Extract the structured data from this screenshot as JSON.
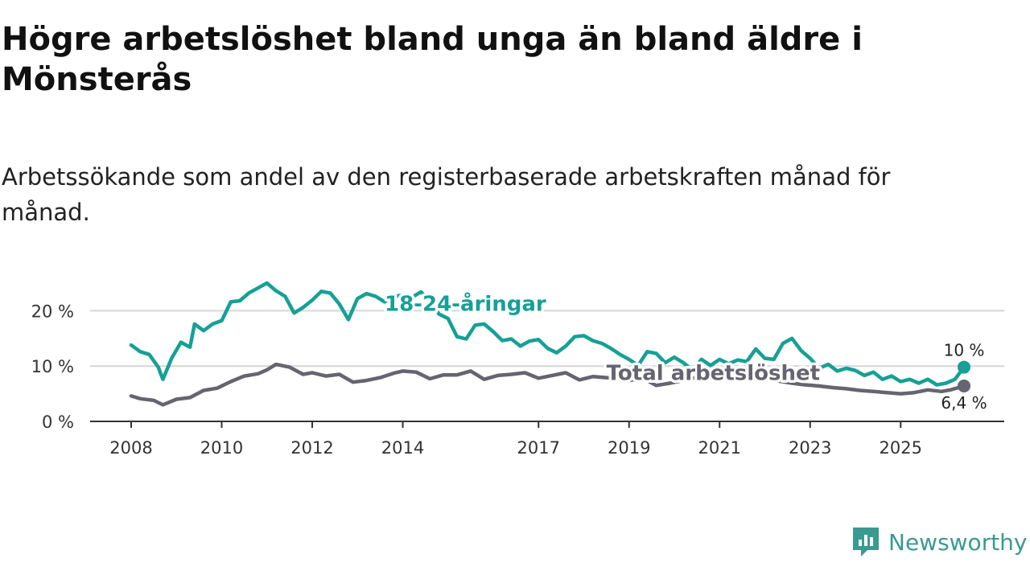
{
  "header": {
    "title": "Högre arbetslöshet bland unga än bland äldre i Mönsterås",
    "subtitle": "Arbetssökande som andel av den registerbaserade arbetskraften månad för månad."
  },
  "brand": {
    "name": "Newsworthy",
    "icon": "newsworthy-logo-icon",
    "color": "#3a9a91"
  },
  "chart_data": {
    "type": "line",
    "title": "Högre arbetslöshet bland unga än bland äldre i Mönsterås",
    "subtitle": "Arbetssökande som andel av den registerbaserade arbetskraften månad för månad.",
    "xlabel": "",
    "ylabel": "",
    "xlim": [
      2008.0,
      2026.4
    ],
    "ylim": [
      0,
      25
    ],
    "grid": true,
    "x_ticks": [
      2008,
      2010,
      2012,
      2014,
      2017,
      2019,
      2021,
      2023,
      2025
    ],
    "x_tick_labels": [
      "2008",
      "2010",
      "2012",
      "2014",
      "2017",
      "2019",
      "2021",
      "2023",
      "2025"
    ],
    "y_ticks": [
      0,
      10,
      20
    ],
    "y_tick_labels": [
      "0 %",
      "10 %",
      "20 %"
    ],
    "series": [
      {
        "name": "18-24-åringar",
        "color": "#16a096",
        "label_at": [
          2013.6,
          20
        ],
        "end_label": "10 %",
        "points": [
          [
            2008.0,
            13.8
          ],
          [
            2008.2,
            12.6
          ],
          [
            2008.4,
            12.1
          ],
          [
            2008.6,
            9.8
          ],
          [
            2008.7,
            7.6
          ],
          [
            2008.9,
            11.5
          ],
          [
            2009.1,
            14.3
          ],
          [
            2009.3,
            13.4
          ],
          [
            2009.4,
            17.6
          ],
          [
            2009.6,
            16.4
          ],
          [
            2009.8,
            17.6
          ],
          [
            2010.0,
            18.2
          ],
          [
            2010.2,
            21.6
          ],
          [
            2010.4,
            21.8
          ],
          [
            2010.6,
            23.2
          ],
          [
            2010.8,
            24.1
          ],
          [
            2011.0,
            25.0
          ],
          [
            2011.2,
            23.6
          ],
          [
            2011.4,
            22.6
          ],
          [
            2011.6,
            19.6
          ],
          [
            2011.8,
            20.6
          ],
          [
            2012.0,
            21.9
          ],
          [
            2012.2,
            23.5
          ],
          [
            2012.4,
            23.2
          ],
          [
            2012.6,
            21.2
          ],
          [
            2012.8,
            18.4
          ],
          [
            2013.0,
            22.2
          ],
          [
            2013.2,
            23.1
          ],
          [
            2013.4,
            22.6
          ],
          [
            2013.6,
            21.6
          ],
          [
            2013.8,
            22.6
          ],
          [
            2014.0,
            22.8
          ],
          [
            2014.2,
            22.4
          ],
          [
            2014.4,
            23.4
          ],
          [
            2014.6,
            21.8
          ],
          [
            2014.8,
            19.4
          ],
          [
            2015.0,
            18.6
          ],
          [
            2015.2,
            15.3
          ],
          [
            2015.4,
            14.9
          ],
          [
            2015.6,
            17.4
          ],
          [
            2015.8,
            17.6
          ],
          [
            2016.0,
            16.2
          ],
          [
            2016.2,
            14.6
          ],
          [
            2016.4,
            14.9
          ],
          [
            2016.6,
            13.6
          ],
          [
            2016.8,
            14.5
          ],
          [
            2017.0,
            14.8
          ],
          [
            2017.2,
            13.2
          ],
          [
            2017.4,
            12.4
          ],
          [
            2017.6,
            13.6
          ],
          [
            2017.8,
            15.3
          ],
          [
            2018.0,
            15.5
          ],
          [
            2018.2,
            14.6
          ],
          [
            2018.4,
            14.1
          ],
          [
            2018.6,
            13.2
          ],
          [
            2018.8,
            12.1
          ],
          [
            2019.0,
            11.2
          ],
          [
            2019.2,
            10.1
          ],
          [
            2019.4,
            12.6
          ],
          [
            2019.6,
            12.3
          ],
          [
            2019.8,
            10.6
          ],
          [
            2020.0,
            11.6
          ],
          [
            2020.2,
            10.6
          ],
          [
            2020.4,
            9.3
          ],
          [
            2020.6,
            11.2
          ],
          [
            2020.8,
            10.1
          ],
          [
            2021.0,
            11.2
          ],
          [
            2021.2,
            10.4
          ],
          [
            2021.4,
            11.1
          ],
          [
            2021.6,
            10.8
          ],
          [
            2021.8,
            13.1
          ],
          [
            2022.0,
            11.4
          ],
          [
            2022.2,
            11.2
          ],
          [
            2022.4,
            14.1
          ],
          [
            2022.6,
            15.0
          ],
          [
            2022.8,
            12.8
          ],
          [
            2023.0,
            11.4
          ],
          [
            2023.2,
            9.6
          ],
          [
            2023.4,
            10.3
          ],
          [
            2023.6,
            9.1
          ],
          [
            2023.8,
            9.6
          ],
          [
            2024.0,
            9.2
          ],
          [
            2024.2,
            8.3
          ],
          [
            2024.4,
            8.9
          ],
          [
            2024.6,
            7.6
          ],
          [
            2024.8,
            8.2
          ],
          [
            2025.0,
            7.2
          ],
          [
            2025.2,
            7.6
          ],
          [
            2025.4,
            6.9
          ],
          [
            2025.6,
            7.6
          ],
          [
            2025.8,
            6.6
          ],
          [
            2026.0,
            6.9
          ],
          [
            2026.2,
            7.6
          ],
          [
            2026.4,
            9.8
          ]
        ]
      },
      {
        "name": "Total arbetslöshet",
        "color": "#666470",
        "label_at": [
          2018.5,
          7.5
        ],
        "end_label": "6,4 %",
        "points": [
          [
            2008.0,
            4.6
          ],
          [
            2008.2,
            4.1
          ],
          [
            2008.5,
            3.8
          ],
          [
            2008.7,
            3.0
          ],
          [
            2009.0,
            4.0
          ],
          [
            2009.3,
            4.3
          ],
          [
            2009.6,
            5.6
          ],
          [
            2009.9,
            6.0
          ],
          [
            2010.2,
            7.2
          ],
          [
            2010.5,
            8.2
          ],
          [
            2010.8,
            8.6
          ],
          [
            2011.0,
            9.3
          ],
          [
            2011.2,
            10.3
          ],
          [
            2011.5,
            9.8
          ],
          [
            2011.8,
            8.5
          ],
          [
            2012.0,
            8.8
          ],
          [
            2012.3,
            8.2
          ],
          [
            2012.6,
            8.5
          ],
          [
            2012.9,
            7.1
          ],
          [
            2013.2,
            7.4
          ],
          [
            2013.5,
            7.9
          ],
          [
            2013.8,
            8.7
          ],
          [
            2014.0,
            9.1
          ],
          [
            2014.3,
            8.9
          ],
          [
            2014.6,
            7.7
          ],
          [
            2014.9,
            8.4
          ],
          [
            2015.2,
            8.4
          ],
          [
            2015.5,
            9.1
          ],
          [
            2015.8,
            7.6
          ],
          [
            2016.1,
            8.3
          ],
          [
            2016.4,
            8.5
          ],
          [
            2016.7,
            8.8
          ],
          [
            2017.0,
            7.8
          ],
          [
            2017.3,
            8.3
          ],
          [
            2017.6,
            8.8
          ],
          [
            2017.9,
            7.5
          ],
          [
            2018.2,
            8.1
          ],
          [
            2018.5,
            7.9
          ],
          [
            2018.8,
            7.8
          ],
          [
            2019.0,
            7.4
          ],
          [
            2019.3,
            7.8
          ],
          [
            2019.6,
            6.5
          ],
          [
            2019.9,
            6.9
          ],
          [
            2020.2,
            7.4
          ],
          [
            2020.5,
            8.0
          ],
          [
            2020.8,
            8.6
          ],
          [
            2021.1,
            8.8
          ],
          [
            2021.4,
            8.2
          ],
          [
            2021.7,
            7.9
          ],
          [
            2022.0,
            7.6
          ],
          [
            2022.3,
            7.3
          ],
          [
            2022.6,
            6.9
          ],
          [
            2022.9,
            6.6
          ],
          [
            2023.2,
            6.4
          ],
          [
            2023.5,
            6.1
          ],
          [
            2023.8,
            5.9
          ],
          [
            2024.1,
            5.6
          ],
          [
            2024.4,
            5.4
          ],
          [
            2024.7,
            5.2
          ],
          [
            2025.0,
            5.0
          ],
          [
            2025.3,
            5.2
          ],
          [
            2025.6,
            5.7
          ],
          [
            2025.9,
            5.4
          ],
          [
            2026.1,
            5.7
          ],
          [
            2026.4,
            6.4
          ]
        ]
      }
    ]
  }
}
